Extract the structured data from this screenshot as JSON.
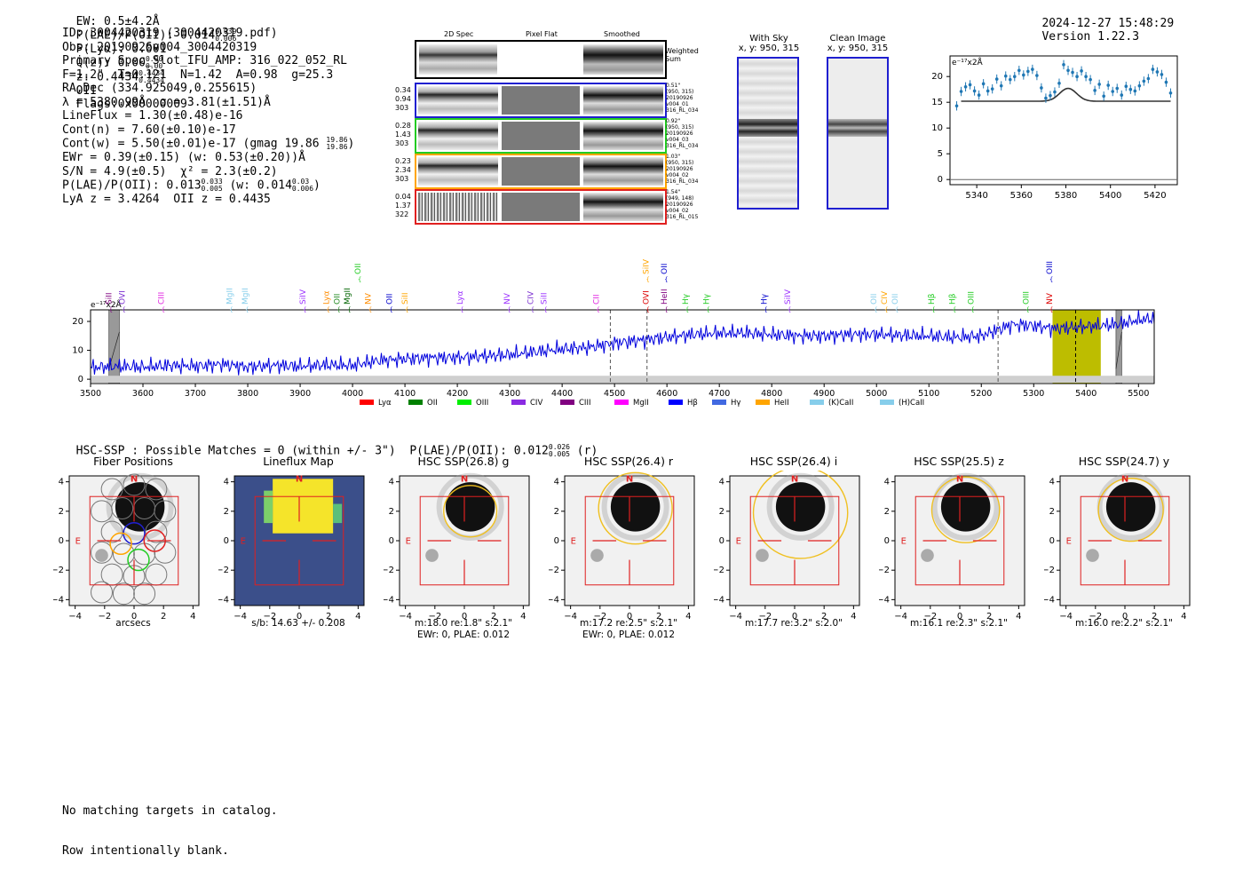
{
  "header": {
    "ew": "EW: 0.5±4.2Å",
    "plae_label": "P(LAE)/P(OII): 0.014",
    "plae_hi": "0.039",
    "plae_lo": "0.006",
    "plya": "P(Lyα): 0.001",
    "qz_label": "Q(z): 0.00",
    "qz_hi": "0.00",
    "qz_lo": "0.00",
    "z_label": "z: 0.4434",
    "z_hi": "0.4434",
    "z_lo": "0.4434",
    "z_line": "OII",
    "flags": "Flags:0x00000009",
    "datetime": "2024-12-27 15:48:29",
    "version": "Version 1.22.3"
  },
  "info": {
    "id": "ID: 3004420319 (3004420319.pdf)",
    "obs": "Obs: 20190926v004_3004420319",
    "primary": "Primary Spec_Slot_IFU_AMP: 316_022_052_RL",
    "params": "F=1.2\"  T=0.121  N=1.42  A=0.98  g=25.3",
    "radec": "RA,Dec (334.925049,0.255615)",
    "lambda": "λ = 5380.99Å  σ = 3.81(±1.51)Å",
    "lineflux": "LineFlux = 1.30(±0.48)e-16",
    "contn": "Cont(n) = 7.60(±0.10)e-17",
    "contw": "Cont(w) = 5.50(±0.01)e-17 (gmag 19.86",
    "contw_hi": "19.86",
    "contw_lo": "19.86",
    "ewr": "EWr = 0.39(±0.15) (w: 0.53(±0.20))Å",
    "sn": "S/N = 4.9(±0.5)  χ² = 2.3(±0.2)",
    "plae": "P(LAE)/P(OII): 0.013",
    "plae_hi": "0.033",
    "plae_lo": "0.005",
    "plae_w": "(w: 0.014",
    "plae_w_hi": "0.03",
    "plae_w_lo": "0.006",
    "lya": "LyA z = 3.4264  OII z = 0.4435"
  },
  "cutouts": {
    "col_2d": "2D Spec",
    "col_flat": "Pixel Flat",
    "col_smooth": "Smoothed",
    "weighted": "Weighted\nSum",
    "rows": [
      {
        "v1": "0.34",
        "v2": "0.94",
        "v3": "303",
        "d": "0.51\"",
        "xy": "(950, 315)",
        "date": "20190926",
        "shot": "v004_01",
        "amp": "316_RL_034",
        "color": "#1f1fd0"
      },
      {
        "v1": "0.28",
        "v2": "1.43",
        "v3": "303",
        "d": "0.92\"",
        "xy": "(950, 315)",
        "date": "20190926",
        "shot": "v004_03",
        "amp": "316_RL_034",
        "color": "#22cc22"
      },
      {
        "v1": "0.23",
        "v2": "2.34",
        "v3": "303",
        "d": "1.03\"",
        "xy": "(950, 315)",
        "date": "20190926",
        "shot": "v004_02",
        "amp": "316_RL_034",
        "color": "#ffa500"
      },
      {
        "v1": "0.04",
        "v2": "1.37",
        "v3": "322",
        "d": "1.54\"",
        "xy": "(949, 148)",
        "date": "20190926",
        "shot": "v004_02",
        "amp": "316_RL_015",
        "color": "#e02020"
      }
    ]
  },
  "sky": {
    "with_sky": "With Sky",
    "with_sky_xy": "x, y: 950, 315",
    "clean": "Clean Image",
    "clean_xy": "x, y: 950, 315"
  },
  "chart_data": [
    {
      "type": "scatter",
      "title": "Line fit zoom",
      "ylabel": "e⁻¹⁷x2Å",
      "xlim": [
        5328,
        5430
      ],
      "ylim": [
        -1,
        24
      ],
      "xticks": [
        5340,
        5360,
        5380,
        5400,
        5420
      ],
      "yticks": [
        0,
        5,
        10,
        15,
        20
      ],
      "x": [
        5331,
        5333,
        5335,
        5337,
        5339,
        5341,
        5343,
        5345,
        5347,
        5349,
        5351,
        5353,
        5355,
        5357,
        5359,
        5361,
        5363,
        5365,
        5367,
        5369,
        5371,
        5373,
        5375,
        5377,
        5379,
        5381,
        5383,
        5385,
        5387,
        5389,
        5391,
        5393,
        5395,
        5397,
        5399,
        5401,
        5403,
        5405,
        5407,
        5409,
        5411,
        5413,
        5415,
        5417,
        5419,
        5421,
        5423,
        5425,
        5427
      ],
      "y": [
        14.3,
        17.1,
        18.0,
        18.4,
        17.2,
        16.4,
        18.6,
        17.2,
        17.6,
        19.5,
        18.2,
        20.1,
        19.4,
        20.0,
        21.2,
        20.3,
        21.0,
        21.4,
        20.2,
        17.8,
        15.8,
        16.3,
        17.0,
        18.7,
        22.3,
        21.2,
        20.8,
        20.0,
        21.1,
        20.0,
        19.4,
        17.3,
        18.5,
        16.2,
        18.3,
        17.1,
        17.7,
        16.4,
        18.1,
        17.5,
        17.2,
        18.2,
        19.1,
        19.6,
        21.4,
        20.9,
        20.4,
        18.9,
        16.8
      ],
      "fit_baseline": 15.2,
      "fit_center": 5381,
      "fit_sigma": 3.81,
      "fit_amplitude": 2.5
    },
    {
      "type": "line",
      "title": "Full spectrum",
      "ylabel": "e⁻¹⁷x2Å",
      "xlim": [
        3500,
        5530
      ],
      "ylim": [
        -1.5,
        24
      ],
      "xticks": [
        3500,
        3600,
        3700,
        3800,
        3900,
        4000,
        4100,
        4200,
        4300,
        4400,
        4500,
        4600,
        4700,
        4800,
        4900,
        5000,
        5100,
        5200,
        5300,
        5400,
        5500
      ],
      "yticks": [
        0,
        10,
        20
      ],
      "series_anchor_x": [
        3500,
        3550,
        3600,
        3650,
        3700,
        3750,
        3800,
        3850,
        3900,
        3950,
        4000,
        4050,
        4100,
        4150,
        4200,
        4250,
        4300,
        4350,
        4400,
        4450,
        4500,
        4550,
        4600,
        4650,
        4700,
        4750,
        4800,
        4850,
        4900,
        4950,
        5000,
        5050,
        5100,
        5150,
        5200,
        5230,
        5260,
        5300,
        5340,
        5380,
        5420,
        5460,
        5500,
        5530
      ],
      "series_anchor_y": [
        4,
        4.5,
        4.2,
        4.8,
        4.5,
        5.2,
        4.2,
        4.8,
        4.5,
        5.0,
        4.8,
        6.5,
        7.0,
        7.5,
        7.5,
        8.0,
        8.5,
        9.5,
        10.5,
        11.0,
        12.5,
        13.5,
        14.5,
        15.5,
        16.0,
        16.0,
        15.5,
        15.0,
        15.0,
        15.5,
        15.5,
        15.2,
        15.0,
        14.5,
        15.0,
        17.0,
        19.0,
        18.5,
        17.5,
        18.0,
        18.5,
        19.0,
        20.5,
        21.0
      ],
      "vlines_dashed": [
        4492,
        4562,
        5232,
        5380
      ],
      "highlight_band": [
        5336,
        5428
      ],
      "hatched_masks": [
        [
          3535,
          3555
        ],
        [
          5457,
          5468
        ]
      ],
      "line_labels": [
        {
          "x": 3540,
          "name": "SiII",
          "tier": "low",
          "color": "#800080"
        },
        {
          "x": 3565,
          "name": "OVI",
          "tier": "low",
          "color": "#7b2fd0"
        },
        {
          "x": 3640,
          "name": "CIII",
          "tier": "low",
          "color": "#e020e0"
        },
        {
          "x": 3770,
          "name": "MgII",
          "tier": "low",
          "color": "#87ceeb"
        },
        {
          "x": 3800,
          "name": "MgII",
          "tier": "low",
          "color": "#87ceeb"
        },
        {
          "x": 3910,
          "name": "SiIV",
          "tier": "low",
          "color": "#9b30ff"
        },
        {
          "x": 3955,
          "name": "Lyα",
          "tier": "low",
          "color": "#ff8c00"
        },
        {
          "x": 3975,
          "name": "OII",
          "tier": "low",
          "color": "#228b22"
        },
        {
          "x": 3995,
          "name": "MgII",
          "tier": "low",
          "color": "#006400"
        },
        {
          "x": 4015,
          "name": "OII",
          "tier": "high",
          "color": "#22cc22"
        },
        {
          "x": 4035,
          "name": "NV",
          "tier": "low",
          "color": "#ff8c00"
        },
        {
          "x": 4075,
          "name": "OII",
          "tier": "low",
          "color": "#0000cd"
        },
        {
          "x": 4105,
          "name": "SiII",
          "tier": "low",
          "color": "#ffa500"
        },
        {
          "x": 4210,
          "name": "Lyα",
          "tier": "low",
          "color": "#9b30ff"
        },
        {
          "x": 4300,
          "name": "NV",
          "tier": "low",
          "color": "#9b30ff"
        },
        {
          "x": 4345,
          "name": "CIV",
          "tier": "low",
          "color": "#7b2fd0"
        },
        {
          "x": 4370,
          "name": "SiII",
          "tier": "low",
          "color": "#9b30ff"
        },
        {
          "x": 4470,
          "name": "CII",
          "tier": "low",
          "color": "#e020e0"
        },
        {
          "x": 4565,
          "name": "OVI",
          "tier": "low",
          "color": "#dd0000"
        },
        {
          "x": 4565,
          "name": "SiIV",
          "tier": "high",
          "color": "#ffa500"
        },
        {
          "x": 4600,
          "name": "OII",
          "tier": "high",
          "color": "#0000cd"
        },
        {
          "x": 4600,
          "name": "HeII",
          "tier": "low",
          "color": "#800080"
        },
        {
          "x": 4640,
          "name": "Hγ",
          "tier": "low",
          "color": "#22cc22"
        },
        {
          "x": 4680,
          "name": "Hγ",
          "tier": "low",
          "color": "#22cc22"
        },
        {
          "x": 4790,
          "name": "Hγ",
          "tier": "low",
          "color": "#0000cd"
        },
        {
          "x": 4835,
          "name": "SiIV",
          "tier": "low",
          "color": "#9b30ff"
        },
        {
          "x": 5000,
          "name": "OII",
          "tier": "low",
          "color": "#87ceeb"
        },
        {
          "x": 5020,
          "name": "CIV",
          "tier": "low",
          "color": "#ffa500"
        },
        {
          "x": 5040,
          "name": "OII",
          "tier": "low",
          "color": "#87ceeb"
        },
        {
          "x": 5110,
          "name": "Hβ",
          "tier": "low",
          "color": "#22cc22"
        },
        {
          "x": 5150,
          "name": "Hβ",
          "tier": "low",
          "color": "#22cc22"
        },
        {
          "x": 5185,
          "name": "OIII",
          "tier": "low",
          "color": "#22cc22"
        },
        {
          "x": 5290,
          "name": "OIII",
          "tier": "low",
          "color": "#22cc22"
        },
        {
          "x": 5335,
          "name": "NV",
          "tier": "low",
          "color": "#dd0000"
        },
        {
          "x": 5335,
          "name": "OIII",
          "tier": "high",
          "color": "#0000cd"
        }
      ],
      "legend": [
        {
          "label": "Lyα",
          "color": "#ff0000"
        },
        {
          "label": "OII",
          "color": "#008000"
        },
        {
          "label": "OIII",
          "color": "#00ee00"
        },
        {
          "label": "CIV",
          "color": "#8a2be2"
        },
        {
          "label": "CIII",
          "color": "#800080"
        },
        {
          "label": "MgII",
          "color": "#ff00ff"
        },
        {
          "label": "Hβ",
          "color": "#0000ff"
        },
        {
          "label": "Hγ",
          "color": "#4169e1"
        },
        {
          "label": "HeII",
          "color": "#ffa500"
        },
        {
          "label": "(K)CaII",
          "color": "#87ceeb"
        },
        {
          "label": "(H)CaII",
          "color": "#87ceeb"
        }
      ]
    }
  ],
  "hsc": {
    "line_pre": "HSC-SSP : Possible Matches = 0 (within +/- 3\")  P(LAE)/P(OII): 0.012",
    "hi": "0.026",
    "lo": "0.005",
    "band": "(r)",
    "ticks": [
      "4",
      "2",
      "0",
      "−2",
      "−4"
    ],
    "xticks": [
      "−4",
      "−2",
      "0",
      "2",
      "4"
    ],
    "north": "N",
    "east": "E",
    "panels": [
      {
        "title": "Fiber Positions",
        "cap1": "arcsecs",
        "cap2": ""
      },
      {
        "title": "Lineflux Map",
        "cap1": "s/b: 14.63 +/- 0.208",
        "cap2": ""
      },
      {
        "title": "HSC SSP(26.8) g",
        "cap1": "m:18.0  re:1.8\"  s:2.1\"",
        "cap2": "EWr: 0, PLAE: 0.012"
      },
      {
        "title": "HSC SSP(26.4) r",
        "cap1": "m:17.2  re:2.5\"  s:2.1\"",
        "cap2": "EWr: 0, PLAE: 0.012"
      },
      {
        "title": "HSC SSP(26.4) i",
        "cap1": "m:17.7  re:3.2\"  s:2.0\"",
        "cap2": ""
      },
      {
        "title": "HSC SSP(25.5) z",
        "cap1": "m:16.1  re:2.3\"  s:2.1\"",
        "cap2": ""
      },
      {
        "title": "HSC SSP(24.7) y",
        "cap1": "m:16.0  re:2.2\"  s:2.1\"",
        "cap2": ""
      }
    ]
  },
  "footer": {
    "line1": "No matching targets in catalog.",
    "line2": "Row intentionally blank."
  }
}
